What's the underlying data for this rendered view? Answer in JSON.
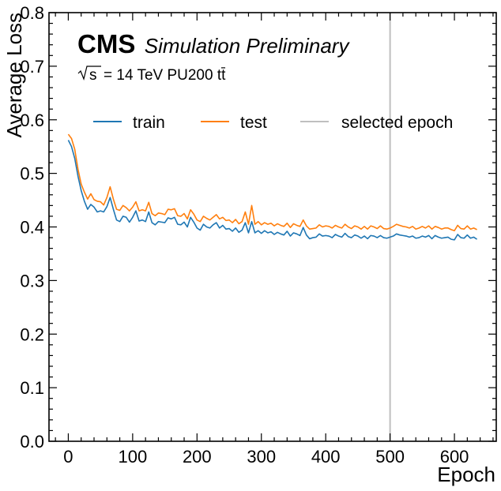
{
  "colors": {
    "train": "#1f77b4",
    "test": "#ff7f0e",
    "selected": "#bfbfbf",
    "axis": "#000000"
  },
  "chart_data": {
    "type": "line",
    "title": "",
    "experiment_label": "CMS",
    "status_label": "Simulation Preliminary",
    "energy_label": {
      "sqrt": "s",
      "text": "= 14 TeV PU200 tt̄"
    },
    "xlabel": "Epoch",
    "ylabel": "Average Loss",
    "xlim": [
      -30,
      665
    ],
    "ylim": [
      0.0,
      0.8
    ],
    "xticks": [
      0,
      100,
      200,
      300,
      400,
      500,
      600
    ],
    "yticks": [
      0.0,
      0.1,
      0.2,
      0.3,
      0.4,
      0.5,
      0.6,
      0.7,
      0.8
    ],
    "xtick_labels": [
      "0",
      "100",
      "200",
      "300",
      "400",
      "500",
      "600"
    ],
    "ytick_labels": [
      "0.0",
      "0.1",
      "0.2",
      "0.3",
      "0.4",
      "0.5",
      "0.6",
      "0.7",
      "0.8"
    ],
    "legend": {
      "placement": "upper",
      "columns": 3
    },
    "vline": {
      "name": "selected epoch",
      "x": 500
    },
    "series": [
      {
        "name": "train",
        "x": [
          0,
          5,
          10,
          15,
          20,
          25,
          30,
          35,
          40,
          45,
          50,
          55,
          60,
          65,
          70,
          75,
          80,
          85,
          90,
          95,
          100,
          105,
          110,
          115,
          120,
          125,
          130,
          135,
          140,
          145,
          150,
          155,
          160,
          165,
          170,
          175,
          180,
          185,
          190,
          195,
          200,
          205,
          210,
          215,
          220,
          225,
          230,
          235,
          240,
          245,
          250,
          255,
          260,
          265,
          270,
          275,
          280,
          285,
          290,
          295,
          300,
          305,
          310,
          315,
          320,
          325,
          330,
          335,
          340,
          345,
          350,
          355,
          360,
          365,
          370,
          375,
          380,
          385,
          390,
          395,
          400,
          405,
          410,
          415,
          420,
          425,
          430,
          435,
          440,
          445,
          450,
          455,
          460,
          465,
          470,
          475,
          480,
          485,
          490,
          495,
          500,
          505,
          510,
          515,
          520,
          525,
          530,
          535,
          540,
          545,
          550,
          555,
          560,
          565,
          570,
          575,
          580,
          585,
          590,
          595,
          600,
          605,
          610,
          615,
          620,
          625,
          630,
          635
        ],
        "values": [
          0.562,
          0.55,
          0.528,
          0.495,
          0.468,
          0.448,
          0.433,
          0.442,
          0.437,
          0.428,
          0.43,
          0.428,
          0.438,
          0.455,
          0.433,
          0.413,
          0.41,
          0.42,
          0.418,
          0.409,
          0.418,
          0.43,
          0.411,
          0.413,
          0.41,
          0.428,
          0.408,
          0.404,
          0.41,
          0.409,
          0.408,
          0.417,
          0.415,
          0.418,
          0.405,
          0.404,
          0.409,
          0.4,
          0.418,
          0.409,
          0.398,
          0.394,
          0.405,
          0.4,
          0.398,
          0.404,
          0.408,
          0.398,
          0.403,
          0.396,
          0.397,
          0.392,
          0.398,
          0.39,
          0.394,
          0.408,
          0.389,
          0.41,
          0.389,
          0.393,
          0.388,
          0.393,
          0.389,
          0.391,
          0.386,
          0.39,
          0.387,
          0.385,
          0.392,
          0.383,
          0.389,
          0.387,
          0.384,
          0.399,
          0.385,
          0.378,
          0.38,
          0.381,
          0.387,
          0.383,
          0.384,
          0.383,
          0.38,
          0.386,
          0.383,
          0.381,
          0.388,
          0.382,
          0.38,
          0.385,
          0.383,
          0.379,
          0.383,
          0.378,
          0.384,
          0.383,
          0.38,
          0.384,
          0.38,
          0.379,
          0.381,
          0.383,
          0.387,
          0.385,
          0.384,
          0.383,
          0.381,
          0.383,
          0.379,
          0.38,
          0.383,
          0.381,
          0.384,
          0.378,
          0.384,
          0.381,
          0.379,
          0.38,
          0.381,
          0.377,
          0.376,
          0.386,
          0.38,
          0.379,
          0.385,
          0.379,
          0.381,
          0.377
        ]
      },
      {
        "name": "test",
        "x": [
          0,
          5,
          10,
          15,
          20,
          25,
          30,
          35,
          40,
          45,
          50,
          55,
          60,
          65,
          70,
          75,
          80,
          85,
          90,
          95,
          100,
          105,
          110,
          115,
          120,
          125,
          130,
          135,
          140,
          145,
          150,
          155,
          160,
          165,
          170,
          175,
          180,
          185,
          190,
          195,
          200,
          205,
          210,
          215,
          220,
          225,
          230,
          235,
          240,
          245,
          250,
          255,
          260,
          265,
          270,
          275,
          280,
          285,
          290,
          295,
          300,
          305,
          310,
          315,
          320,
          325,
          330,
          335,
          340,
          345,
          350,
          355,
          360,
          365,
          370,
          375,
          380,
          385,
          390,
          395,
          400,
          405,
          410,
          415,
          420,
          425,
          430,
          435,
          440,
          445,
          450,
          455,
          460,
          465,
          470,
          475,
          480,
          485,
          490,
          495,
          500,
          505,
          510,
          515,
          520,
          525,
          530,
          535,
          540,
          545,
          550,
          555,
          560,
          565,
          570,
          575,
          580,
          585,
          590,
          595,
          600,
          605,
          610,
          615,
          620,
          625,
          630,
          635
        ],
        "values": [
          0.573,
          0.565,
          0.545,
          0.508,
          0.48,
          0.465,
          0.452,
          0.462,
          0.451,
          0.448,
          0.447,
          0.441,
          0.455,
          0.475,
          0.452,
          0.433,
          0.431,
          0.44,
          0.436,
          0.43,
          0.437,
          0.447,
          0.43,
          0.432,
          0.43,
          0.446,
          0.425,
          0.421,
          0.426,
          0.425,
          0.423,
          0.433,
          0.432,
          0.434,
          0.421,
          0.42,
          0.425,
          0.415,
          0.432,
          0.424,
          0.413,
          0.41,
          0.42,
          0.416,
          0.413,
          0.418,
          0.423,
          0.415,
          0.418,
          0.412,
          0.413,
          0.408,
          0.414,
          0.406,
          0.41,
          0.428,
          0.405,
          0.44,
          0.405,
          0.41,
          0.404,
          0.408,
          0.405,
          0.407,
          0.402,
          0.406,
          0.403,
          0.401,
          0.407,
          0.399,
          0.406,
          0.403,
          0.401,
          0.413,
          0.402,
          0.396,
          0.397,
          0.398,
          0.404,
          0.4,
          0.402,
          0.401,
          0.398,
          0.403,
          0.4,
          0.398,
          0.405,
          0.4,
          0.397,
          0.402,
          0.4,
          0.396,
          0.401,
          0.396,
          0.402,
          0.4,
          0.397,
          0.402,
          0.397,
          0.396,
          0.398,
          0.401,
          0.405,
          0.403,
          0.401,
          0.4,
          0.398,
          0.401,
          0.396,
          0.398,
          0.401,
          0.398,
          0.402,
          0.396,
          0.401,
          0.399,
          0.396,
          0.398,
          0.398,
          0.395,
          0.393,
          0.403,
          0.397,
          0.396,
          0.402,
          0.396,
          0.398,
          0.395
        ]
      }
    ]
  }
}
